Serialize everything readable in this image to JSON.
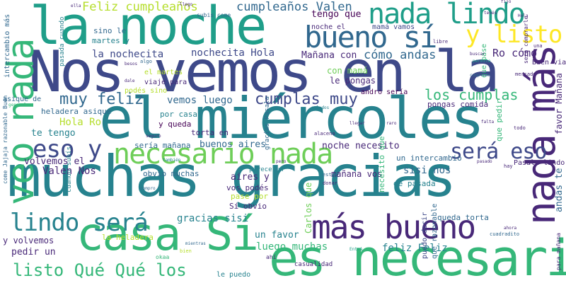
{
  "words": {
    "muchas_gracias": "muchas gracias",
    "el_miercoles": "el miércoles",
    "nos_vemos_en_la": "Nos vemos en la",
    "la_noche": "la noche",
    "es_necesario": "es necesario",
    "casa_si": "casa Sí",
    "nada_mas": "nada más",
    "veo_nada": "veo nada",
    "bueno_si": "bueno sí",
    "nada_lindo": "nada lindo",
    "necesario_nada": "necesario nada",
    "mas_bueno": "más bueno",
    "lindo_sera": "lindo será",
    "y_listo": "y listo",
    "eso_y": "eso y",
    "sera_eso": "será eso",
    "muy_feliz": "muy feliz",
    "los_cumplas": "los cumplas",
    "cumplas_muy": "cumplas muy",
    "listo_que_que_los": "listo Qué Qué los",
    "feliz_cumpleanos": "Feliz cumpleaños",
    "cumpleanos_valen": "cumpleaños Valen",
    "la_nochecita": "la nochecita",
    "nochecita_hola": "nochecita Hola",
    "manana_con": "Mañana con",
    "como_andas": "cómo andas",
    "ro_como": "Ro cómo",
    "hola_ro": "Hola Ro",
    "te_tengo": "te tengo",
    "valen_nos": "Valen Nos",
    "volvemos_el": "volvemos el",
    "buenos_aires": "buenos aires",
    "noche_necesito": "noche necesito",
    "sisi_nos": "sisi nos",
    "gracias_sisi": "gracias sisi",
    "feliz_feliz": "feliz Feliz",
    "luego_muchas": "luego muchas",
    "un_favor": "un favor",
    "y_volvemos": "y volvemos",
    "pedir_un": "pedir un",
    "tengo_que": "tengo que",
    "noche_el": "noche el",
    "mama_vamos": "mamá vamos",
    "con_mama": "con mamá",
    "le_pongas": "le pongas",
    "andro_seria": "andro sería",
    "pongas_comida": "pongas comida",
    "vemos_luego": "vemos luego",
    "por_casa": "por casa",
    "y_queda": "y queda",
    "torta_en": "torta en",
    "seria_manana": "sería mañana",
    "obvio_muchas": "obvio muchas",
    "aires_y": "aires y",
    "vos_podes": "vos podés",
    "pase_por": "pase por",
    "si_obvio": "Sí obvio",
    "manana_con_vos": "mañana vos",
    "de_pasada": "de pasada",
    "un_intercambio": "un intercambio",
    "pasala_lindo": "Pasala lindo",
    "favor_manana": "favor Mañana",
    "andas_te": "andas te",
    "sino_le": "sino le",
    "martes_y": "martes y",
    "el_martes": "el martes",
    "viaje_para": "viaje para",
    "podes_sino": "podés sino",
    "la_heladera": "la heladera",
    "heladera_asique": "heladera asique",
    "asique_de": "asique de",
    "intercambio_mas": "intercambio más",
    "pasada_cuando": "pasada cuando",
    "cuando_subis": "cuando subís",
    "subis_come": "subis come",
    "carlos_que": "Carlos que",
    "necesito_que": "necesito que",
    "puedo_decir": "puedo decir",
    "que_razonable": "que razonable",
    "queda_torta": "queda torta",
    "le_puedo": "le puedo",
    "casualidad": "casualidad",
    "gracias_pasala": "gracias Pasala",
    "buen_viaje": "Buen viaje",
    "para_manana": "para mañana",
    "sera_comprarle": "será comprarle",
    "que_pase": "que pase",
    "que_pedir": "que pedir",
    "parece_un": "parece un",
    "come_jajaja": "come Jajaja razonable Buen",
    "cuadradito": "cuadradito",
    "mercado": "mercado",
    "alacena": "alacena",
    "tambien": "también",
    "okaa": "okaa",
    "ahi": "ahí",
    "algo": "algo",
    "todo": "todo",
    "tenes": "tenés",
    "fijo": "fijo",
    "llegar": "llegar",
    "libre": "libre",
    "buscar": "buscar",
    "permite": "permite",
    "donar": "donar",
    "estoy": "estoy",
    "ahora": "ahora",
    "besos": "besos",
    "hay": "hay",
    "pero": "pero",
    "llego": "llego",
    "bien": "bien",
    "mientras": "mientras",
    "entra": "Entrá",
    "una": "una",
    "raro": "raro",
    "dale": "dale",
    "saludos": "saludos",
    "cumplido": "cumplido",
    "general": "general",
    "compro": "compro",
    "falta": "falta",
    "seguro": "seguro",
    "hola_small": "Hola",
    "pasado": "pasado",
    "ella": "ella"
  },
  "colors": {
    "c1": "#440154",
    "c2": "#482878",
    "c3": "#3e4989",
    "c4": "#31688e",
    "c5": "#26828e",
    "c6": "#1f9e89",
    "c7": "#35b779",
    "c8": "#6ece58",
    "c9": "#b5de2b",
    "c10": "#d6e21a",
    "c11": "#fde725"
  }
}
